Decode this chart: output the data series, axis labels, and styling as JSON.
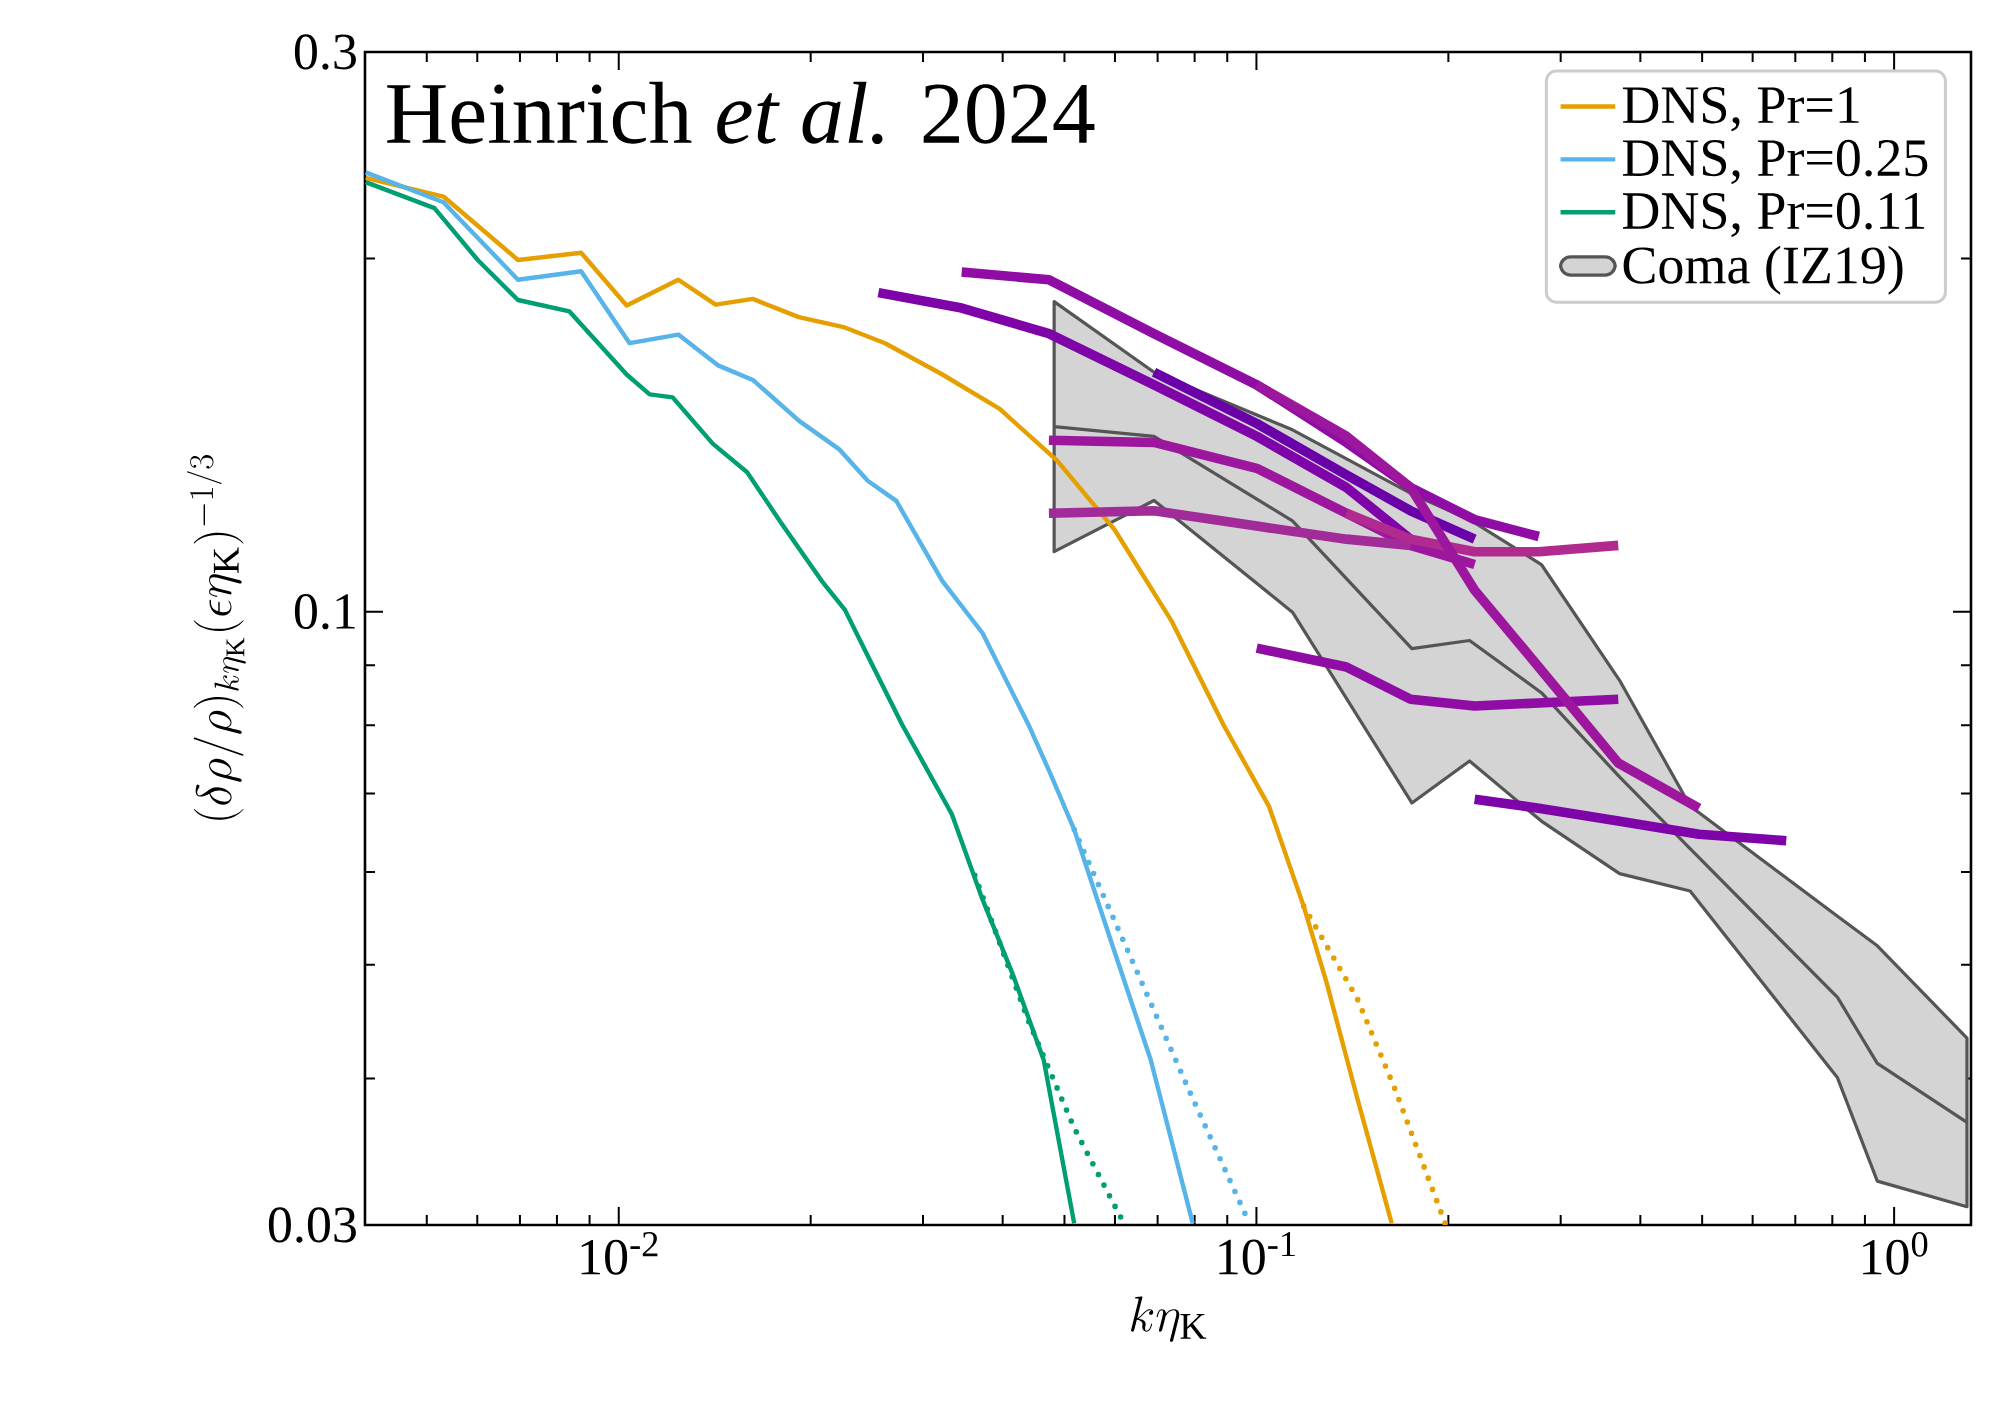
{
  "chart_data": {
    "type": "line",
    "annotations": [
      "Heinrich *et al.* 2024"
    ],
    "xlabel": "k\\eta_\\mathrm{K}",
    "ylabel": "(\\delta\\rho/\\rho)_{k\\eta_\\mathrm{K}}(\\epsilon\\eta_\\mathrm{K})^{-1/3}",
    "log": "xy",
    "xlim": [
      0.004,
      1.32
    ],
    "ylim": [
      0.03,
      0.3
    ],
    "xticks": [
      {
        "value": 0.01,
        "label": "10$^{-2}$"
      },
      {
        "value": 0.1,
        "label": "10$^{-1}$"
      },
      {
        "value": 1,
        "label": "10$^{0}$"
      },
      {
        "value": 0.005,
        "label": null
      },
      {
        "value": 0.006,
        "label": null
      },
      {
        "value": 0.007,
        "label": null
      },
      {
        "value": 0.008,
        "label": null
      },
      {
        "value": 0.009,
        "label": null
      },
      {
        "value": 0.02,
        "label": null
      },
      {
        "value": 0.03,
        "label": null
      },
      {
        "value": 0.04,
        "label": null
      },
      {
        "value": 0.05,
        "label": null
      },
      {
        "value": 0.06,
        "label": null
      },
      {
        "value": 0.07,
        "label": null
      },
      {
        "value": 0.08,
        "label": null
      },
      {
        "value": 0.09,
        "label": null
      },
      {
        "value": 0.2,
        "label": null
      },
      {
        "value": 0.3,
        "label": null
      },
      {
        "value": 0.4,
        "label": null
      },
      {
        "value": 0.5,
        "label": null
      },
      {
        "value": 0.6,
        "label": null
      },
      {
        "value": 0.7,
        "label": null
      },
      {
        "value": 0.8,
        "label": null
      },
      {
        "value": 0.9,
        "label": null
      }
    ],
    "yticks": [
      0.03,
      0.1,
      0.3,
      {
        "value": 0.04,
        "label": null
      },
      {
        "value": 0.05,
        "label": null
      },
      {
        "value": 0.06,
        "label": null
      },
      {
        "value": 0.07,
        "label": null
      },
      {
        "value": 0.08,
        "label": null
      },
      {
        "value": 0.09,
        "label": null
      },
      {
        "value": 0.2,
        "label": null
      }
    ],
    "legend": "top right",
    "series": [
      {
        "name": "DNS, Pr=1",
        "color": "#e69f00",
        "x": [
          0.00401,
          0.00531,
          0.00695,
          0.00873,
          0.01029,
          0.0124,
          0.01419,
          0.01623,
          0.01916,
          0.02262,
          0.02616,
          0.03218,
          0.03958,
          0.0487,
          0.0599,
          0.07368,
          0.08877,
          0.1047,
          0.1186,
          0.1288,
          0.1439,
          0.163
        ],
        "values": [
          0.2343,
          0.2259,
          0.1995,
          0.2023,
          0.1824,
          0.1919,
          0.1827,
          0.1848,
          0.1783,
          0.1747,
          0.1694,
          0.1593,
          0.1489,
          0.1345,
          0.1175,
          0.0981,
          0.0801,
          0.0682,
          0.0561,
          0.0483,
          0.0385,
          0.0301
        ]
      },
      {
        "name": "DNS, Pr=0.25",
        "color": "#56b4e9",
        "x": [
          0.00401,
          0.00531,
          0.00695,
          0.00873,
          0.0104,
          0.0124,
          0.01434,
          0.01623,
          0.01916,
          0.02215,
          0.02457,
          0.02724,
          0.03218,
          0.03719,
          0.04391,
          0.04767,
          0.05179,
          0.05941,
          0.06827,
          0.07947
        ],
        "values": [
          0.2369,
          0.2234,
          0.1919,
          0.1951,
          0.1694,
          0.1723,
          0.1621,
          0.1576,
          0.1455,
          0.1376,
          0.1293,
          0.1243,
          0.1062,
          0.0959,
          0.0801,
          0.0725,
          0.0652,
          0.052,
          0.0415,
          0.0301
        ]
      },
      {
        "name": "DNS, Pr=0.11",
        "color": "#009e73",
        "x": [
          0.00401,
          0.00514,
          0.00601,
          0.00695,
          0.00837,
          0.01029,
          0.01118,
          0.01215,
          0.01404,
          0.0159,
          0.018,
          0.02082,
          0.02262,
          0.02457,
          0.02783,
          0.0333,
          0.03717,
          0.04153,
          0.04638,
          0.05179
        ],
        "values": [
          0.2324,
          0.2208,
          0.1995,
          0.1844,
          0.1803,
          0.1593,
          0.1532,
          0.1523,
          0.1391,
          0.1315,
          0.1189,
          0.1062,
          0.1004,
          0.0917,
          0.0801,
          0.0672,
          0.0569,
          0.049,
          0.0415,
          0.0301
        ]
      },
      {
        "color": "#e69f00",
        "line_style": "dotted",
        "x": [
          0.1186,
          0.1439,
          0.1652,
          0.1977
        ],
        "values": [
          0.0561,
          0.0468,
          0.0391,
          0.0301
        ]
      },
      {
        "color": "#56b4e9",
        "line_style": "dotted",
        "x": [
          0.05179,
          0.06459,
          0.07837,
          0.09643
        ],
        "values": [
          0.0652,
          0.0497,
          0.0391,
          0.0305
        ]
      },
      {
        "color": "#009e73",
        "line_style": "dotted",
        "x": [
          0.03617,
          0.04389,
          0.05179,
          0.06197
        ],
        "values": [
          0.0596,
          0.0448,
          0.0363,
          0.0301
        ]
      },
      {
        "name": "Coma (IZ19)",
        "color": "#555555",
        "x": [
          0.04817,
          0.0691,
          0.1139,
          0.1753,
          0.2159,
          0.2798,
          0.3711,
          0.4787,
          0.8152,
          0.9412,
          1.301
        ],
        "values": [
          0.1438,
          0.1411,
          0.1195,
          0.093,
          0.0945,
          0.0853,
          0.0723,
          0.0628,
          0.0469,
          0.0412,
          0.0367
        ],
        "upper": [
          0.1838,
          0.16,
          0.1429,
          0.126,
          0.1198,
          0.1097,
          0.0874,
          0.0683,
          0.055,
          0.0519,
          0.0433
        ],
        "lower": [
          0.1125,
          0.1244,
          0.0999,
          0.0687,
          0.0746,
          0.0663,
          0.0598,
          0.0578,
          0.04005,
          0.0327,
          0.0311
        ]
      },
      {
        "color": "#7e03a8",
        "x": [
          0.02554,
          0.0345,
          0.04727,
          0.0691,
          0.1001,
          0.1384,
          0.1745
        ],
        "values": [
          0.1871,
          0.1815,
          0.1726,
          0.1561,
          0.1411,
          0.1276,
          0.1153
        ]
      },
      {
        "color": "#8f0da4",
        "x": [
          0.0345,
          0.04727,
          0.0691,
          0.1001,
          0.1384,
          0.1745,
          0.2199,
          0.2772
        ],
        "values": [
          0.1948,
          0.1919,
          0.1726,
          0.1561,
          0.1394,
          0.1276,
          0.1198,
          0.1159
        ]
      },
      {
        "color": "#9c179e",
        "x": [
          0.04727,
          0.0691,
          0.1001,
          0.1384,
          0.1745,
          0.2199
        ],
        "values": [
          0.14,
          0.1394,
          0.1325,
          0.1213,
          0.1139,
          0.1097
        ]
      },
      {
        "color": "#a22b9a",
        "x": [
          0.04727,
          0.0691,
          0.1001,
          0.1384,
          0.1745
        ],
        "values": [
          0.1213,
          0.1219,
          0.1183,
          0.1153,
          0.1139
        ]
      },
      {
        "color": "#6a00a8",
        "x": [
          0.0691,
          0.1001,
          0.1384,
          0.1745,
          0.2199
        ],
        "values": [
          0.16,
          0.1447,
          0.1308,
          0.1219,
          0.1153
        ]
      },
      {
        "color": "#8f0da4",
        "x": [
          0.1001,
          0.1384,
          0.1745,
          0.2199,
          0.2772,
          0.3694
        ],
        "values": [
          0.0931,
          0.0897,
          0.0842,
          0.0831,
          0.0836,
          0.0842
        ]
      },
      {
        "color": "#7e03a8",
        "x": [
          0.2199,
          0.2772,
          0.3694,
          0.4944,
          0.6775
        ],
        "values": [
          0.0692,
          0.068,
          0.0663,
          0.0646,
          0.0638
        ]
      },
      {
        "color": "#b12a90",
        "x": [
          0.1384,
          0.1745,
          0.2199,
          0.2772,
          0.3694
        ],
        "values": [
          0.1213,
          0.1153,
          0.1125,
          0.1125,
          0.1139
        ]
      },
      {
        "color": "#9c179e",
        "x": [
          0.1001,
          0.1384,
          0.1745,
          0.2199,
          0.2772,
          0.3694,
          0.4944
        ],
        "values": [
          0.1561,
          0.1411,
          0.1276,
          0.1043,
          0.0897,
          0.0743,
          0.068
        ]
      }
    ]
  }
}
